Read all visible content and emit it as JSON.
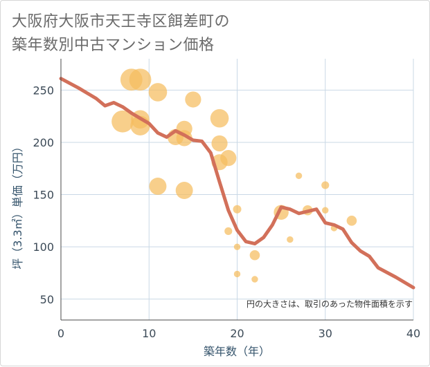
{
  "title_lines": [
    "大阪府大阪市天王寺区餌差町の",
    "築年数別中古マンション価格"
  ],
  "chart_data": {
    "type": "scatter",
    "xlabel": "築年数（年）",
    "ylabel": "坪（3.3㎡）単価（万円）",
    "xlim": [
      0,
      40
    ],
    "ylim": [
      30,
      280
    ],
    "x_ticks": [
      0,
      10,
      20,
      30,
      40
    ],
    "y_ticks": [
      50,
      100,
      150,
      200,
      250
    ],
    "grid": true,
    "note": "円の大きさは、取引のあった物件面積を示す",
    "colors": {
      "bubble": "#f5bd5e",
      "line": "#d2705a",
      "grid": "#c9d8e6"
    },
    "bubbles": [
      {
        "x": 8,
        "y": 260,
        "size": 3
      },
      {
        "x": 9,
        "y": 260,
        "size": 3
      },
      {
        "x": 11,
        "y": 248,
        "size": 2.4
      },
      {
        "x": 15,
        "y": 241,
        "size": 2
      },
      {
        "x": 7,
        "y": 220,
        "size": 3
      },
      {
        "x": 9,
        "y": 222,
        "size": 2.4
      },
      {
        "x": 9,
        "y": 216,
        "size": 2.6
      },
      {
        "x": 14,
        "y": 213,
        "size": 2
      },
      {
        "x": 13,
        "y": 205,
        "size": 2
      },
      {
        "x": 14,
        "y": 204,
        "size": 2
      },
      {
        "x": 18,
        "y": 223,
        "size": 2.4
      },
      {
        "x": 18,
        "y": 199,
        "size": 2
      },
      {
        "x": 19,
        "y": 185,
        "size": 2
      },
      {
        "x": 18,
        "y": 181,
        "size": 2
      },
      {
        "x": 11,
        "y": 158,
        "size": 2.2
      },
      {
        "x": 14,
        "y": 154,
        "size": 2.2
      },
      {
        "x": 20,
        "y": 136,
        "size": 0.7
      },
      {
        "x": 19,
        "y": 115,
        "size": 0.6
      },
      {
        "x": 20,
        "y": 100,
        "size": 0.4
      },
      {
        "x": 20,
        "y": 74,
        "size": 0.4
      },
      {
        "x": 22,
        "y": 92,
        "size": 1
      },
      {
        "x": 22,
        "y": 69,
        "size": 0.4
      },
      {
        "x": 25,
        "y": 133,
        "size": 1.8
      },
      {
        "x": 26,
        "y": 107,
        "size": 0.4
      },
      {
        "x": 27,
        "y": 168,
        "size": 0.4
      },
      {
        "x": 28,
        "y": 135,
        "size": 1
      },
      {
        "x": 30,
        "y": 159,
        "size": 0.6
      },
      {
        "x": 30,
        "y": 135,
        "size": 0.4
      },
      {
        "x": 31,
        "y": 118,
        "size": 0.4
      },
      {
        "x": 33,
        "y": 125,
        "size": 1
      }
    ],
    "line": {
      "x": [
        0,
        2,
        4,
        5,
        6,
        7,
        8,
        9,
        10,
        11,
        12,
        13,
        14,
        15,
        16,
        17,
        18,
        19,
        20,
        21,
        22,
        23,
        24,
        25,
        26,
        27,
        28,
        29,
        30,
        31,
        32,
        33,
        34,
        35,
        36,
        38,
        40
      ],
      "y": [
        261,
        252,
        242,
        235,
        238,
        234,
        228,
        223,
        218,
        209,
        205,
        211,
        207,
        202,
        201,
        190,
        162,
        135,
        116,
        105,
        103,
        109,
        121,
        138,
        136,
        132,
        134,
        136,
        123,
        121,
        117,
        104,
        96,
        91,
        80,
        71,
        61
      ]
    }
  }
}
